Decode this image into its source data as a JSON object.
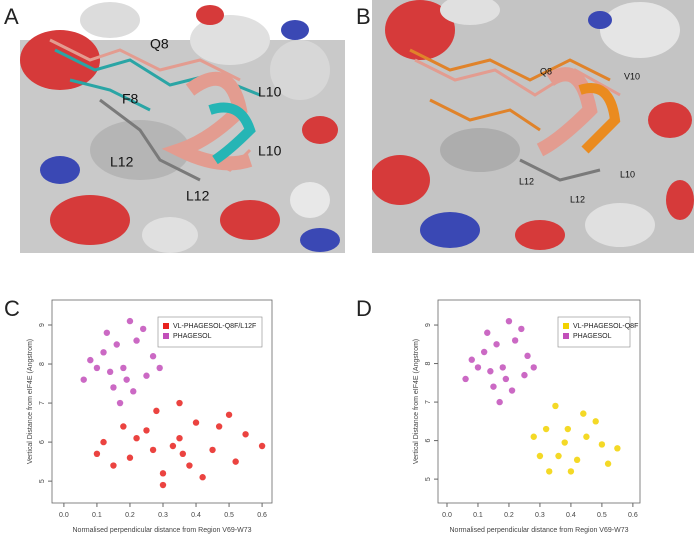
{
  "figure_letters": [
    "A",
    "B",
    "C",
    "D"
  ],
  "panels": [
    {
      "labels": [
        "Q8",
        "F8",
        "L10",
        "L10",
        "L12",
        "L12"
      ]
    },
    {
      "labels": [
        "Q8",
        "V10",
        "L12",
        "L10",
        "L12"
      ]
    }
  ],
  "chart_data": [
    {
      "type": "scatter",
      "x_label": "Normalised perpendicular distance from Region V69-W73",
      "y_label": "Vertical Distance from eIF4E (Angstrom)",
      "xlim": [
        -0.036,
        0.63
      ],
      "ylim": [
        4.44,
        9.64
      ],
      "xticks": [
        {
          "value": 0,
          "label": "0.0"
        },
        0.1,
        0.2,
        0.3,
        0.4,
        0.5,
        0.6
      ],
      "yticks": [
        5,
        6,
        7,
        8,
        9
      ],
      "legend": "upper right",
      "series": [
        {
          "name": "VL-PHAGESOL-Q8F/L12F",
          "color": "#e8221e",
          "x": [
            0.33,
            0.25,
            0.4,
            0.2,
            0.45,
            0.12,
            0.55,
            0.3,
            0.38,
            0.5,
            0.28,
            0.15,
            0.6,
            0.35,
            0.22,
            0.42,
            0.47,
            0.1,
            0.35,
            0.3,
            0.27,
            0.36,
            0.18,
            0.52
          ],
          "values": [
            5.9,
            6.3,
            6.5,
            5.6,
            5.8,
            6.0,
            6.2,
            5.2,
            5.4,
            6.7,
            6.8,
            5.4,
            5.9,
            6.1,
            6.1,
            5.1,
            6.4,
            5.7,
            7.0,
            4.9,
            5.8,
            5.7,
            6.4,
            5.5
          ]
        },
        {
          "name": "PHAGESOL",
          "color": "#c24fba",
          "x": [
            0.18,
            0.12,
            0.22,
            0.15,
            0.25,
            0.1,
            0.2,
            0.17,
            0.27,
            0.13,
            0.21,
            0.08,
            0.24,
            0.16,
            0.19,
            0.14,
            0.06,
            0.29
          ],
          "values": [
            7.9,
            8.3,
            8.6,
            7.4,
            7.7,
            7.9,
            9.1,
            7.0,
            8.2,
            8.8,
            7.3,
            8.1,
            8.9,
            8.5,
            7.6,
            7.8,
            7.6,
            7.9
          ]
        }
      ]
    },
    {
      "type": "scatter",
      "x_label": "Normalised perpendicular distance from Region V69-W73",
      "y_label": "Vertical Distance from eIF4E (Angstrom)",
      "xlim": [
        -0.029,
        0.623
      ],
      "ylim": [
        4.38,
        9.65
      ],
      "xticks": [
        {
          "value": 0,
          "label": "0.0"
        },
        0.1,
        0.2,
        0.3,
        0.4,
        0.5,
        0.6
      ],
      "yticks": [
        5,
        6,
        7,
        8,
        9
      ],
      "legend": "upper right",
      "series": [
        {
          "name": "VL-PHAGESOL-Q8F",
          "color": "#f2d200",
          "x": [
            0.38,
            0.32,
            0.45,
            0.3,
            0.42,
            0.5,
            0.35,
            0.28,
            0.48,
            0.4,
            0.55,
            0.36,
            0.44,
            0.33,
            0.39,
            0.52
          ],
          "values": [
            5.95,
            6.3,
            6.1,
            5.6,
            5.5,
            5.9,
            6.9,
            6.1,
            6.5,
            5.2,
            5.8,
            5.6,
            6.7,
            5.2,
            6.3,
            5.4
          ]
        },
        {
          "name": "PHAGESOL",
          "color": "#c24fba",
          "x": [
            0.18,
            0.12,
            0.22,
            0.15,
            0.25,
            0.1,
            0.2,
            0.17,
            0.26,
            0.13,
            0.21,
            0.08,
            0.24,
            0.16,
            0.19,
            0.14,
            0.06,
            0.28
          ],
          "values": [
            7.9,
            8.3,
            8.6,
            7.4,
            7.7,
            7.9,
            9.1,
            7.0,
            8.2,
            8.8,
            7.3,
            8.1,
            8.9,
            8.5,
            7.6,
            7.8,
            7.6,
            7.9
          ]
        }
      ]
    }
  ]
}
